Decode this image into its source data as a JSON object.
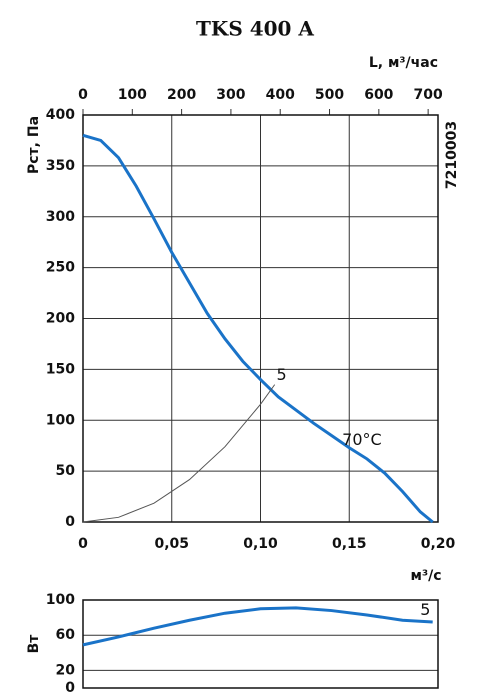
{
  "chart_data": [
    {
      "type": "line",
      "title": "TKS 400 A",
      "code": "7210003",
      "xlabel": "м³/с",
      "ylabel": "Pст, Па",
      "x2label": "L, м³/час",
      "xlim": [
        0,
        0.2
      ],
      "xticks": [
        0,
        {
          "value": 0.05,
          "label": "0,05"
        },
        {
          "value": 0.1,
          "label": "0,10"
        },
        {
          "value": 0.15,
          "label": "0,15"
        },
        {
          "value": 0.2,
          "label": "0,20"
        }
      ],
      "x2lim": [
        0,
        720
      ],
      "x2ticks": [
        0,
        100,
        200,
        300,
        400,
        500,
        600,
        700
      ],
      "ylim": [
        0,
        400
      ],
      "yticks": [
        0,
        50,
        100,
        150,
        200,
        250,
        300,
        350,
        400
      ],
      "grid": true,
      "series": [
        {
          "color": "#1a73c8",
          "width": 3,
          "x": [
            0,
            0.01,
            0.02,
            0.03,
            0.04,
            0.05,
            0.06,
            0.07,
            0.08,
            0.09,
            0.1,
            0.11,
            0.12,
            0.13,
            0.14,
            0.15,
            0.16,
            0.17,
            0.18,
            0.19,
            0.197
          ],
          "values": [
            380,
            375,
            358,
            330,
            298,
            265,
            235,
            205,
            180,
            158,
            140,
            123,
            110,
            97,
            85,
            73,
            62,
            48,
            30,
            10,
            0
          ]
        },
        {
          "color": "#555555",
          "width": 1,
          "x": [
            0,
            0.02,
            0.04,
            0.06,
            0.08,
            0.1,
            0.108
          ],
          "values": [
            0,
            4.6,
            18.5,
            41.7,
            74,
            115.7,
            135
          ]
        }
      ],
      "annotations": [
        {
          "text": "5",
          "x": 0.109,
          "y": 144
        },
        {
          "text": "70°C",
          "x": 0.146,
          "y": 80
        }
      ]
    },
    {
      "type": "line",
      "ylabel": "Вт",
      "xlim": [
        0,
        0.2
      ],
      "ylim": [
        0,
        100
      ],
      "yticks": [
        0,
        20,
        60,
        100
      ],
      "grid": true,
      "series": [
        {
          "color": "#1a73c8",
          "width": 3,
          "x": [
            0,
            0.02,
            0.04,
            0.06,
            0.08,
            0.1,
            0.12,
            0.14,
            0.16,
            0.18,
            0.197
          ],
          "values": [
            49,
            58,
            68,
            77,
            85,
            90,
            91,
            88,
            83,
            77,
            75
          ]
        }
      ],
      "annotations": [
        {
          "text": "5",
          "x": 0.19,
          "y": 88
        }
      ]
    }
  ]
}
